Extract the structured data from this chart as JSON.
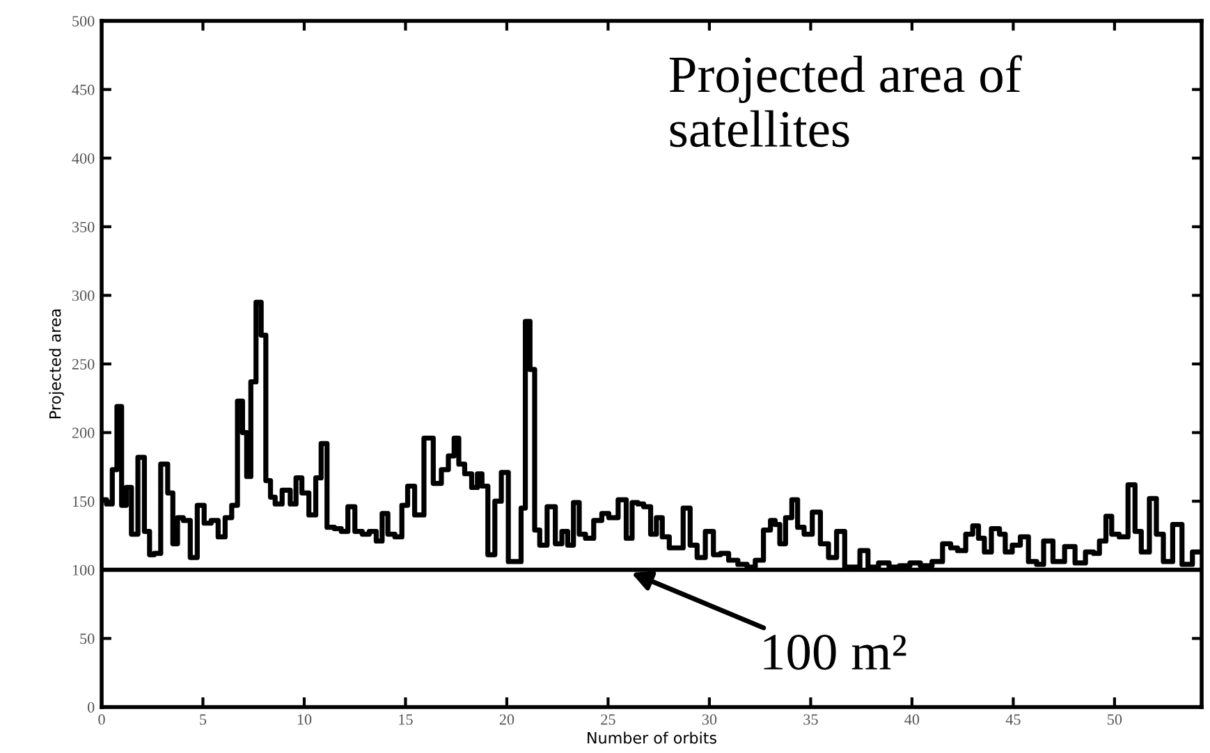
{
  "chart_data": {
    "type": "step",
    "title": "Projected area of satellites",
    "xlabel": "Number of orbits",
    "ylabel": "Projected area",
    "x": [
      0.07,
      0.41,
      0.64,
      0.87,
      1.1,
      1.33,
      1.61,
      1.97,
      2.25,
      2.48,
      2.71,
      3.12,
      3.4,
      3.63,
      3.86,
      4.2,
      4.55,
      4.89,
      5.23,
      5.58,
      5.92,
      6.27,
      6.57,
      6.84,
      7.07,
      7.25,
      7.48,
      7.76,
      7.99,
      8.22,
      8.45,
      8.68,
      9.14,
      9.48,
      9.71,
      10.06,
      10.4,
      10.74,
      10.93,
      11.32,
      11.66,
      12.0,
      12.31,
      12.69,
      13.04,
      13.38,
      13.73,
      13.96,
      14.3,
      14.65,
      14.99,
      15.22,
      15.68,
      16.14,
      16.6,
      16.94,
      17.29,
      17.51,
      17.75,
      18.09,
      18.44,
      18.66,
      18.89,
      19.24,
      19.58,
      19.88,
      20.27,
      20.61,
      20.8,
      21.03,
      21.26,
      21.49,
      21.76,
      22.22,
      22.57,
      22.87,
      23.14,
      23.44,
      23.71,
      24.06,
      24.52,
      24.86,
      25.21,
      25.78,
      26.01,
      26.36,
      26.58,
      26.93,
      27.27,
      27.5,
      27.85,
      28.19,
      28.53,
      28.88,
      29.22,
      29.57,
      30.03,
      30.37,
      30.72,
      31.18,
      31.63,
      32.09,
      32.44,
      32.9,
      33.13,
      33.36,
      33.59,
      33.93,
      34.21,
      34.5,
      34.85,
      35.31,
      35.65,
      36.11,
      36.45,
      36.91,
      37.26,
      37.6,
      38.06,
      38.64,
      39.1,
      39.67,
      40.13,
      40.7,
      41.28,
      41.74,
      42.08,
      42.42,
      42.89,
      43.11,
      43.46,
      43.69,
      44.15,
      44.49,
      44.72,
      45.18,
      45.52,
      45.98,
      46.33,
      46.67,
      47.25,
      47.82,
      48.28,
      48.85,
      49.08,
      49.43,
      49.72,
      50.0,
      50.46,
      50.87,
      51.15,
      51.49,
      51.95,
      52.18,
      52.64,
      53.1,
      53.56,
      54.13
    ],
    "series": [
      {
        "color": "#000000",
        "values": [
          151,
          148,
          173,
          219,
          147,
          160,
          126,
          182,
          128,
          111,
          112,
          177,
          156,
          119,
          138,
          136,
          109,
          147,
          134,
          136,
          124,
          138,
          147,
          223,
          200,
          168,
          237,
          295,
          271,
          165,
          153,
          148,
          158,
          148,
          167,
          156,
          140,
          167,
          192,
          131,
          130,
          128,
          146,
          128,
          126,
          128,
          121,
          141,
          126,
          124,
          147,
          161,
          140,
          196,
          163,
          173,
          183,
          196,
          177,
          170,
          160,
          170,
          161,
          111,
          150,
          171,
          106,
          106,
          145,
          281,
          246,
          129,
          118,
          146,
          119,
          128,
          118,
          149,
          126,
          123,
          136,
          141,
          138,
          151,
          123,
          149,
          148,
          146,
          126,
          138,
          124,
          116,
          116,
          145,
          118,
          109,
          128,
          111,
          112,
          107,
          104,
          102,
          107,
          129,
          136,
          133,
          119,
          138,
          151,
          131,
          126,
          142,
          119,
          109,
          128,
          102,
          102,
          114,
          102,
          105,
          102,
          103,
          105,
          103,
          106,
          119,
          116,
          114,
          126,
          132,
          123,
          113,
          130,
          126,
          113,
          118,
          124,
          106,
          104,
          121,
          106,
          117,
          105,
          113,
          112,
          121,
          139,
          126,
          124,
          162,
          128,
          113,
          152,
          126,
          106,
          133,
          104,
          113
        ]
      }
    ],
    "xlim": [
      0,
      54.3
    ],
    "ylim": [
      0,
      500
    ],
    "xticks": [
      0,
      5,
      10,
      15,
      20,
      25,
      30,
      35,
      40,
      45,
      50
    ],
    "yticks": [
      0,
      50,
      100,
      150,
      200,
      250,
      300,
      350,
      400,
      450,
      500
    ],
    "grid": false,
    "legend": false,
    "ref_lines": [
      {
        "axis": "y",
        "value": 100,
        "color": "#000000",
        "label": "100 m²"
      }
    ]
  }
}
